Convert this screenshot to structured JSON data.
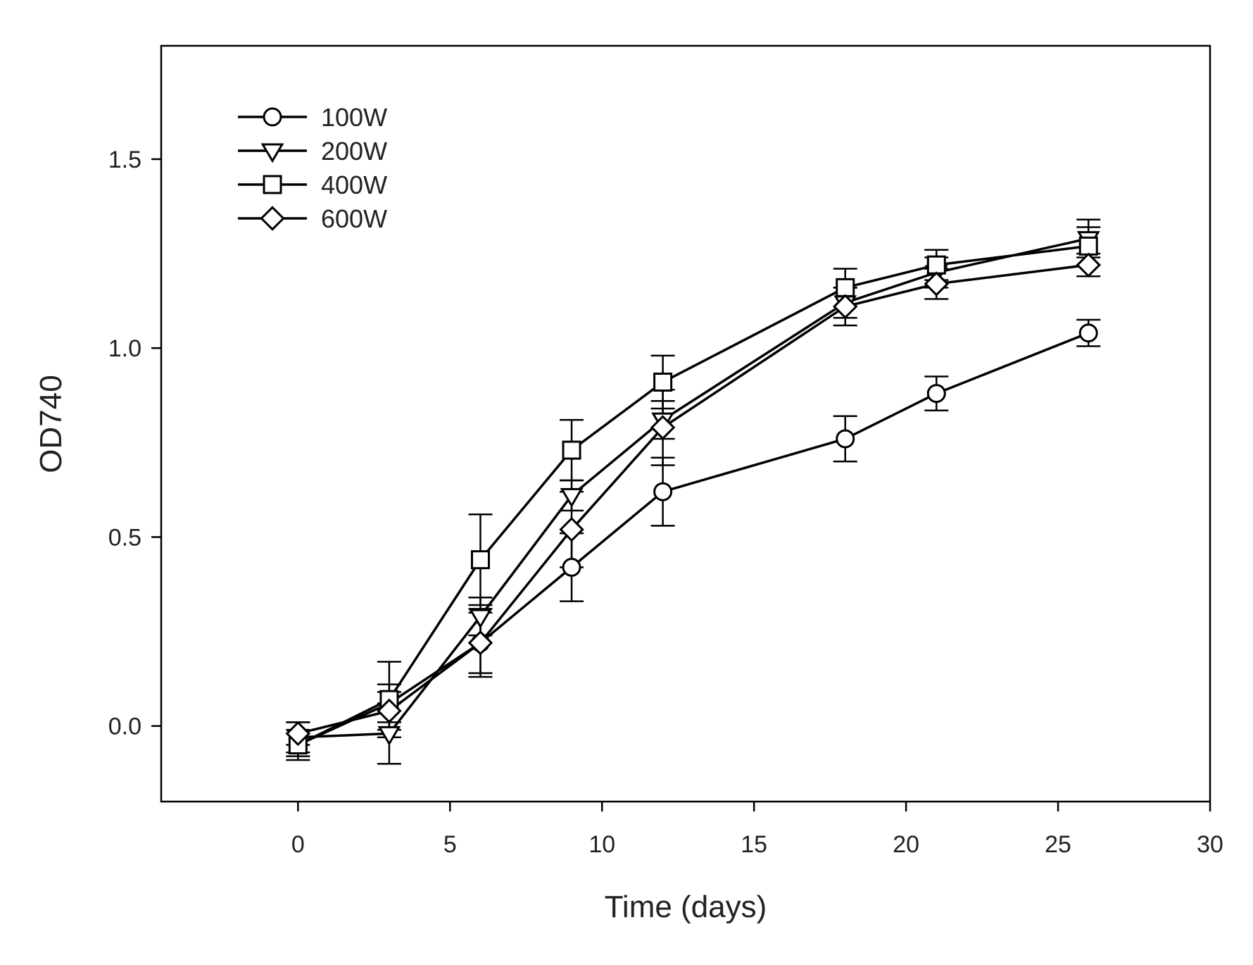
{
  "chart_data": {
    "type": "line",
    "title": "",
    "xlabel": "Time (days)",
    "ylabel": "OD740",
    "xlim": [
      -4.5,
      30
    ],
    "ylim": [
      -0.2,
      1.8
    ],
    "xticks": [
      0,
      5,
      10,
      15,
      20,
      25,
      30
    ],
    "yticks": [
      0.0,
      0.5,
      1.0,
      1.5
    ],
    "xtick_labels": [
      "0",
      "5",
      "10",
      "15",
      "20",
      "25",
      "30"
    ],
    "ytick_labels": [
      "0.0",
      "0.5",
      "1.0",
      "1.5"
    ],
    "grid": false,
    "legend_position": "top-left",
    "x": [
      0,
      3,
      6,
      9,
      12,
      18,
      21,
      26
    ],
    "series": [
      {
        "name": "100W",
        "marker": "circle",
        "values": [
          -0.05,
          0.06,
          0.22,
          0.42,
          0.62,
          0.76,
          0.88,
          1.04
        ],
        "errors": [
          0.04,
          0.05,
          0.08,
          0.09,
          0.09,
          0.06,
          0.045,
          0.035
        ]
      },
      {
        "name": "200W",
        "marker": "triangle-down",
        "values": [
          -0.03,
          -0.02,
          0.29,
          0.61,
          0.81,
          1.12,
          1.2,
          1.29
        ],
        "errors": [
          0.04,
          0.08,
          0.05,
          0.04,
          0.05,
          0.04,
          0.04,
          0.05
        ]
      },
      {
        "name": "400W",
        "marker": "square",
        "values": [
          -0.05,
          0.07,
          0.44,
          0.73,
          0.91,
          1.16,
          1.22,
          1.27
        ],
        "errors": [
          0.03,
          0.1,
          0.12,
          0.08,
          0.07,
          0.05,
          0.04,
          0.05
        ]
      },
      {
        "name": "600W",
        "marker": "diamond",
        "values": [
          -0.02,
          0.04,
          0.22,
          0.52,
          0.79,
          1.11,
          1.17,
          1.22
        ],
        "errors": [
          0.03,
          0.05,
          0.09,
          0.1,
          0.1,
          0.05,
          0.04,
          0.03
        ]
      }
    ]
  }
}
